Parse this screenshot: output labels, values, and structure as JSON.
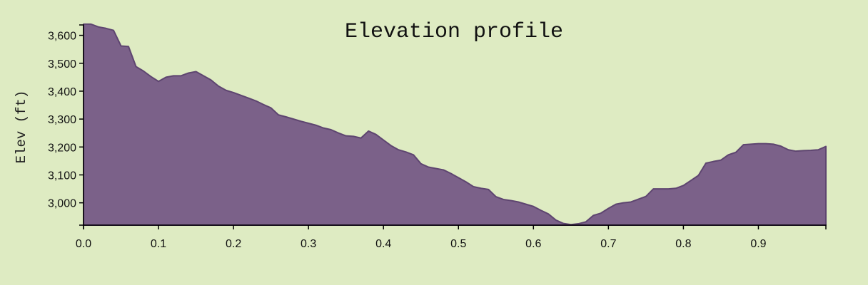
{
  "chart_data": {
    "type": "area",
    "title": "Elevation profile",
    "xlabel": "",
    "ylabel": "Elev (ft)",
    "xlim": [
      0,
      0.99
    ],
    "ylim": [
      2920,
      3650
    ],
    "grid": false,
    "legend": "none",
    "colors": {
      "fill": "#7b6189",
      "stroke": "#5e4570",
      "background": "#deebc2"
    },
    "x_ticks": [
      0.0,
      0.1,
      0.2,
      0.3,
      0.4,
      0.5,
      0.6,
      0.7,
      0.8,
      0.9
    ],
    "x_tick_labels": [
      "0.0",
      "0.1",
      "0.2",
      "0.3",
      "0.4",
      "0.5",
      "0.6",
      "0.7",
      "0.8",
      "0.9"
    ],
    "y_ticks": [
      3000,
      3100,
      3200,
      3300,
      3400,
      3500,
      3600
    ],
    "y_tick_labels": [
      "3,000",
      "3,100",
      "3,200",
      "3,300",
      "3,400",
      "3,500",
      "3,600"
    ],
    "series": [
      {
        "x": [
          0.0,
          0.01,
          0.02,
          0.03,
          0.04,
          0.05,
          0.06,
          0.07,
          0.08,
          0.09,
          0.1,
          0.11,
          0.12,
          0.13,
          0.14,
          0.15,
          0.16,
          0.17,
          0.18,
          0.19,
          0.2,
          0.21,
          0.22,
          0.23,
          0.24,
          0.25,
          0.26,
          0.27,
          0.28,
          0.29,
          0.3,
          0.31,
          0.32,
          0.33,
          0.34,
          0.35,
          0.36,
          0.37,
          0.38,
          0.39,
          0.4,
          0.41,
          0.42,
          0.43,
          0.44,
          0.45,
          0.46,
          0.47,
          0.48,
          0.49,
          0.5,
          0.51,
          0.52,
          0.53,
          0.54,
          0.55,
          0.56,
          0.57,
          0.58,
          0.59,
          0.6,
          0.61,
          0.62,
          0.63,
          0.64,
          0.65,
          0.66,
          0.67,
          0.68,
          0.69,
          0.7,
          0.71,
          0.72,
          0.73,
          0.74,
          0.75,
          0.76,
          0.77,
          0.78,
          0.79,
          0.8,
          0.81,
          0.82,
          0.83,
          0.84,
          0.85,
          0.86,
          0.87,
          0.88,
          0.89,
          0.9,
          0.91,
          0.92,
          0.93,
          0.94,
          0.95,
          0.96,
          0.97,
          0.98,
          0.99
        ],
        "y": [
          3640,
          3640,
          3630,
          3625,
          3618,
          3562,
          3560,
          3488,
          3472,
          3452,
          3435,
          3450,
          3455,
          3455,
          3465,
          3470,
          3455,
          3440,
          3418,
          3403,
          3395,
          3385,
          3375,
          3365,
          3352,
          3340,
          3315,
          3308,
          3300,
          3292,
          3285,
          3278,
          3268,
          3262,
          3250,
          3240,
          3238,
          3232,
          3257,
          3245,
          3225,
          3205,
          3190,
          3182,
          3172,
          3140,
          3128,
          3123,
          3118,
          3105,
          3090,
          3075,
          3058,
          3052,
          3048,
          3022,
          3012,
          3008,
          3003,
          2995,
          2987,
          2973,
          2960,
          2938,
          2926,
          2922,
          2925,
          2932,
          2955,
          2963,
          2980,
          2995,
          3000,
          3003,
          3013,
          3023,
          3050,
          3050,
          3050,
          3052,
          3062,
          3080,
          3098,
          3142,
          3148,
          3153,
          3172,
          3181,
          3208,
          3210,
          3212,
          3212,
          3210,
          3203,
          3190,
          3185,
          3187,
          3188,
          3190,
          3202
        ]
      }
    ]
  }
}
